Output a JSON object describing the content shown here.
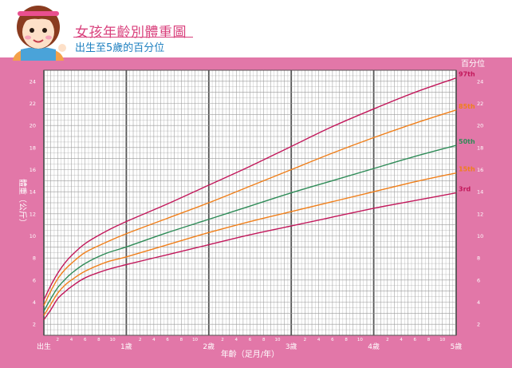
{
  "header": {
    "title": "女孩年齡別體重圖",
    "subtitle": "出生至5歲的百分位"
  },
  "colors": {
    "frame": "#e277a8",
    "grid": "#9a9a9a",
    "grid_major": "#555555",
    "title": "#d9407c",
    "subtitle": "#1e80c0"
  },
  "chart_data": {
    "type": "line",
    "title": "女孩年齡別體重圖",
    "subtitle": "出生至5歲的百分位",
    "xlabel": "年齡（足月/年）",
    "ylabel": "體重（公斤）",
    "legend_title": "百分位",
    "xlim": [
      0,
      60
    ],
    "ylim": [
      1,
      25
    ],
    "y_ticks": [
      2,
      4,
      6,
      8,
      10,
      12,
      14,
      16,
      18,
      20,
      22,
      24
    ],
    "month_ticks": [
      "2",
      "4",
      "6",
      "8",
      "10"
    ],
    "year_labels": [
      {
        "month": 0,
        "label": "出生"
      },
      {
        "month": 12,
        "label": "1歲"
      },
      {
        "month": 24,
        "label": "2歲"
      },
      {
        "month": 36,
        "label": "3歲"
      },
      {
        "month": 48,
        "label": "4歲"
      },
      {
        "month": 60,
        "label": "5歲"
      }
    ],
    "x": [
      0,
      1,
      2,
      3,
      4,
      6,
      9,
      12,
      18,
      24,
      30,
      36,
      42,
      48,
      54,
      60
    ],
    "series": [
      {
        "name": "97th",
        "color": "#c2185b",
        "values": [
          4.2,
          5.5,
          6.6,
          7.5,
          8.2,
          9.3,
          10.4,
          11.3,
          12.9,
          14.6,
          16.3,
          18.1,
          19.9,
          21.5,
          23.0,
          24.3
        ]
      },
      {
        "name": "85th",
        "color": "#f07f1a",
        "values": [
          3.7,
          5.0,
          6.1,
          6.9,
          7.5,
          8.5,
          9.4,
          10.2,
          11.6,
          13.0,
          14.5,
          16.0,
          17.5,
          18.9,
          20.2,
          21.4
        ]
      },
      {
        "name": "50th",
        "color": "#2e8b57",
        "values": [
          3.2,
          4.3,
          5.3,
          6.0,
          6.6,
          7.5,
          8.4,
          9.0,
          10.3,
          11.5,
          12.7,
          13.9,
          15.0,
          16.1,
          17.2,
          18.2
        ]
      },
      {
        "name": "15th",
        "color": "#f07f1a",
        "values": [
          2.8,
          3.8,
          4.8,
          5.5,
          6.0,
          6.8,
          7.6,
          8.1,
          9.2,
          10.3,
          11.3,
          12.2,
          13.1,
          14.0,
          14.9,
          15.7
        ]
      },
      {
        "name": "3rd",
        "color": "#c2185b",
        "values": [
          2.4,
          3.3,
          4.3,
          4.9,
          5.4,
          6.2,
          6.9,
          7.4,
          8.3,
          9.2,
          10.1,
          10.9,
          11.7,
          12.5,
          13.2,
          13.9
        ]
      }
    ]
  }
}
